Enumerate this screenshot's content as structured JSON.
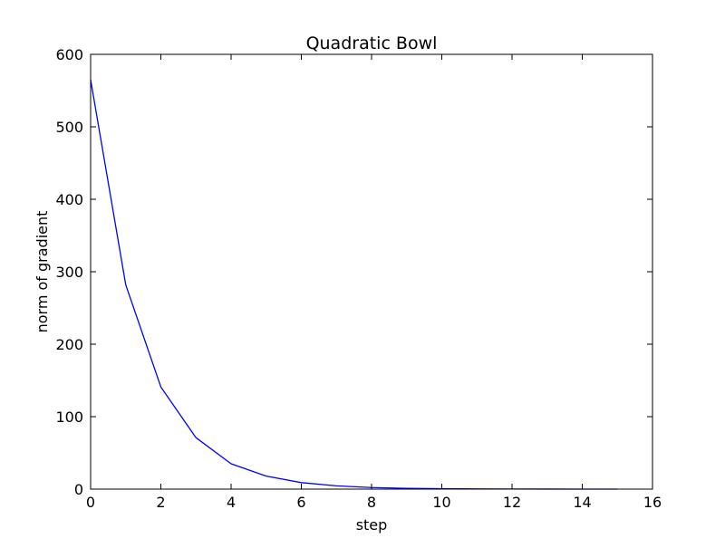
{
  "chart_data": {
    "type": "line",
    "title": "Quadratic Bowl",
    "xlabel": "step",
    "ylabel": "norm of gradient",
    "xlim": [
      0,
      16
    ],
    "ylim": [
      0,
      600
    ],
    "x_ticks": [
      0,
      2,
      4,
      6,
      8,
      10,
      12,
      14,
      16
    ],
    "x_tick_labels": [
      "0",
      "2",
      "4",
      "6",
      "8",
      "10",
      "12",
      "14",
      "16"
    ],
    "y_ticks": [
      0,
      100,
      200,
      300,
      400,
      500,
      600
    ],
    "y_tick_labels": [
      "0",
      "100",
      "200",
      "300",
      "400",
      "500",
      "600"
    ],
    "grid": false,
    "series": [
      {
        "color": "#0000ff",
        "x": [
          0,
          1,
          2,
          3,
          4,
          5,
          6,
          7,
          8,
          9,
          10,
          11,
          12,
          13,
          14,
          15
        ],
        "y": [
          565,
          282,
          141,
          71,
          35,
          18,
          9,
          4.5,
          2.2,
          1.1,
          0.6,
          0.3,
          0.15,
          0.07,
          0.04,
          0.02
        ]
      }
    ]
  }
}
